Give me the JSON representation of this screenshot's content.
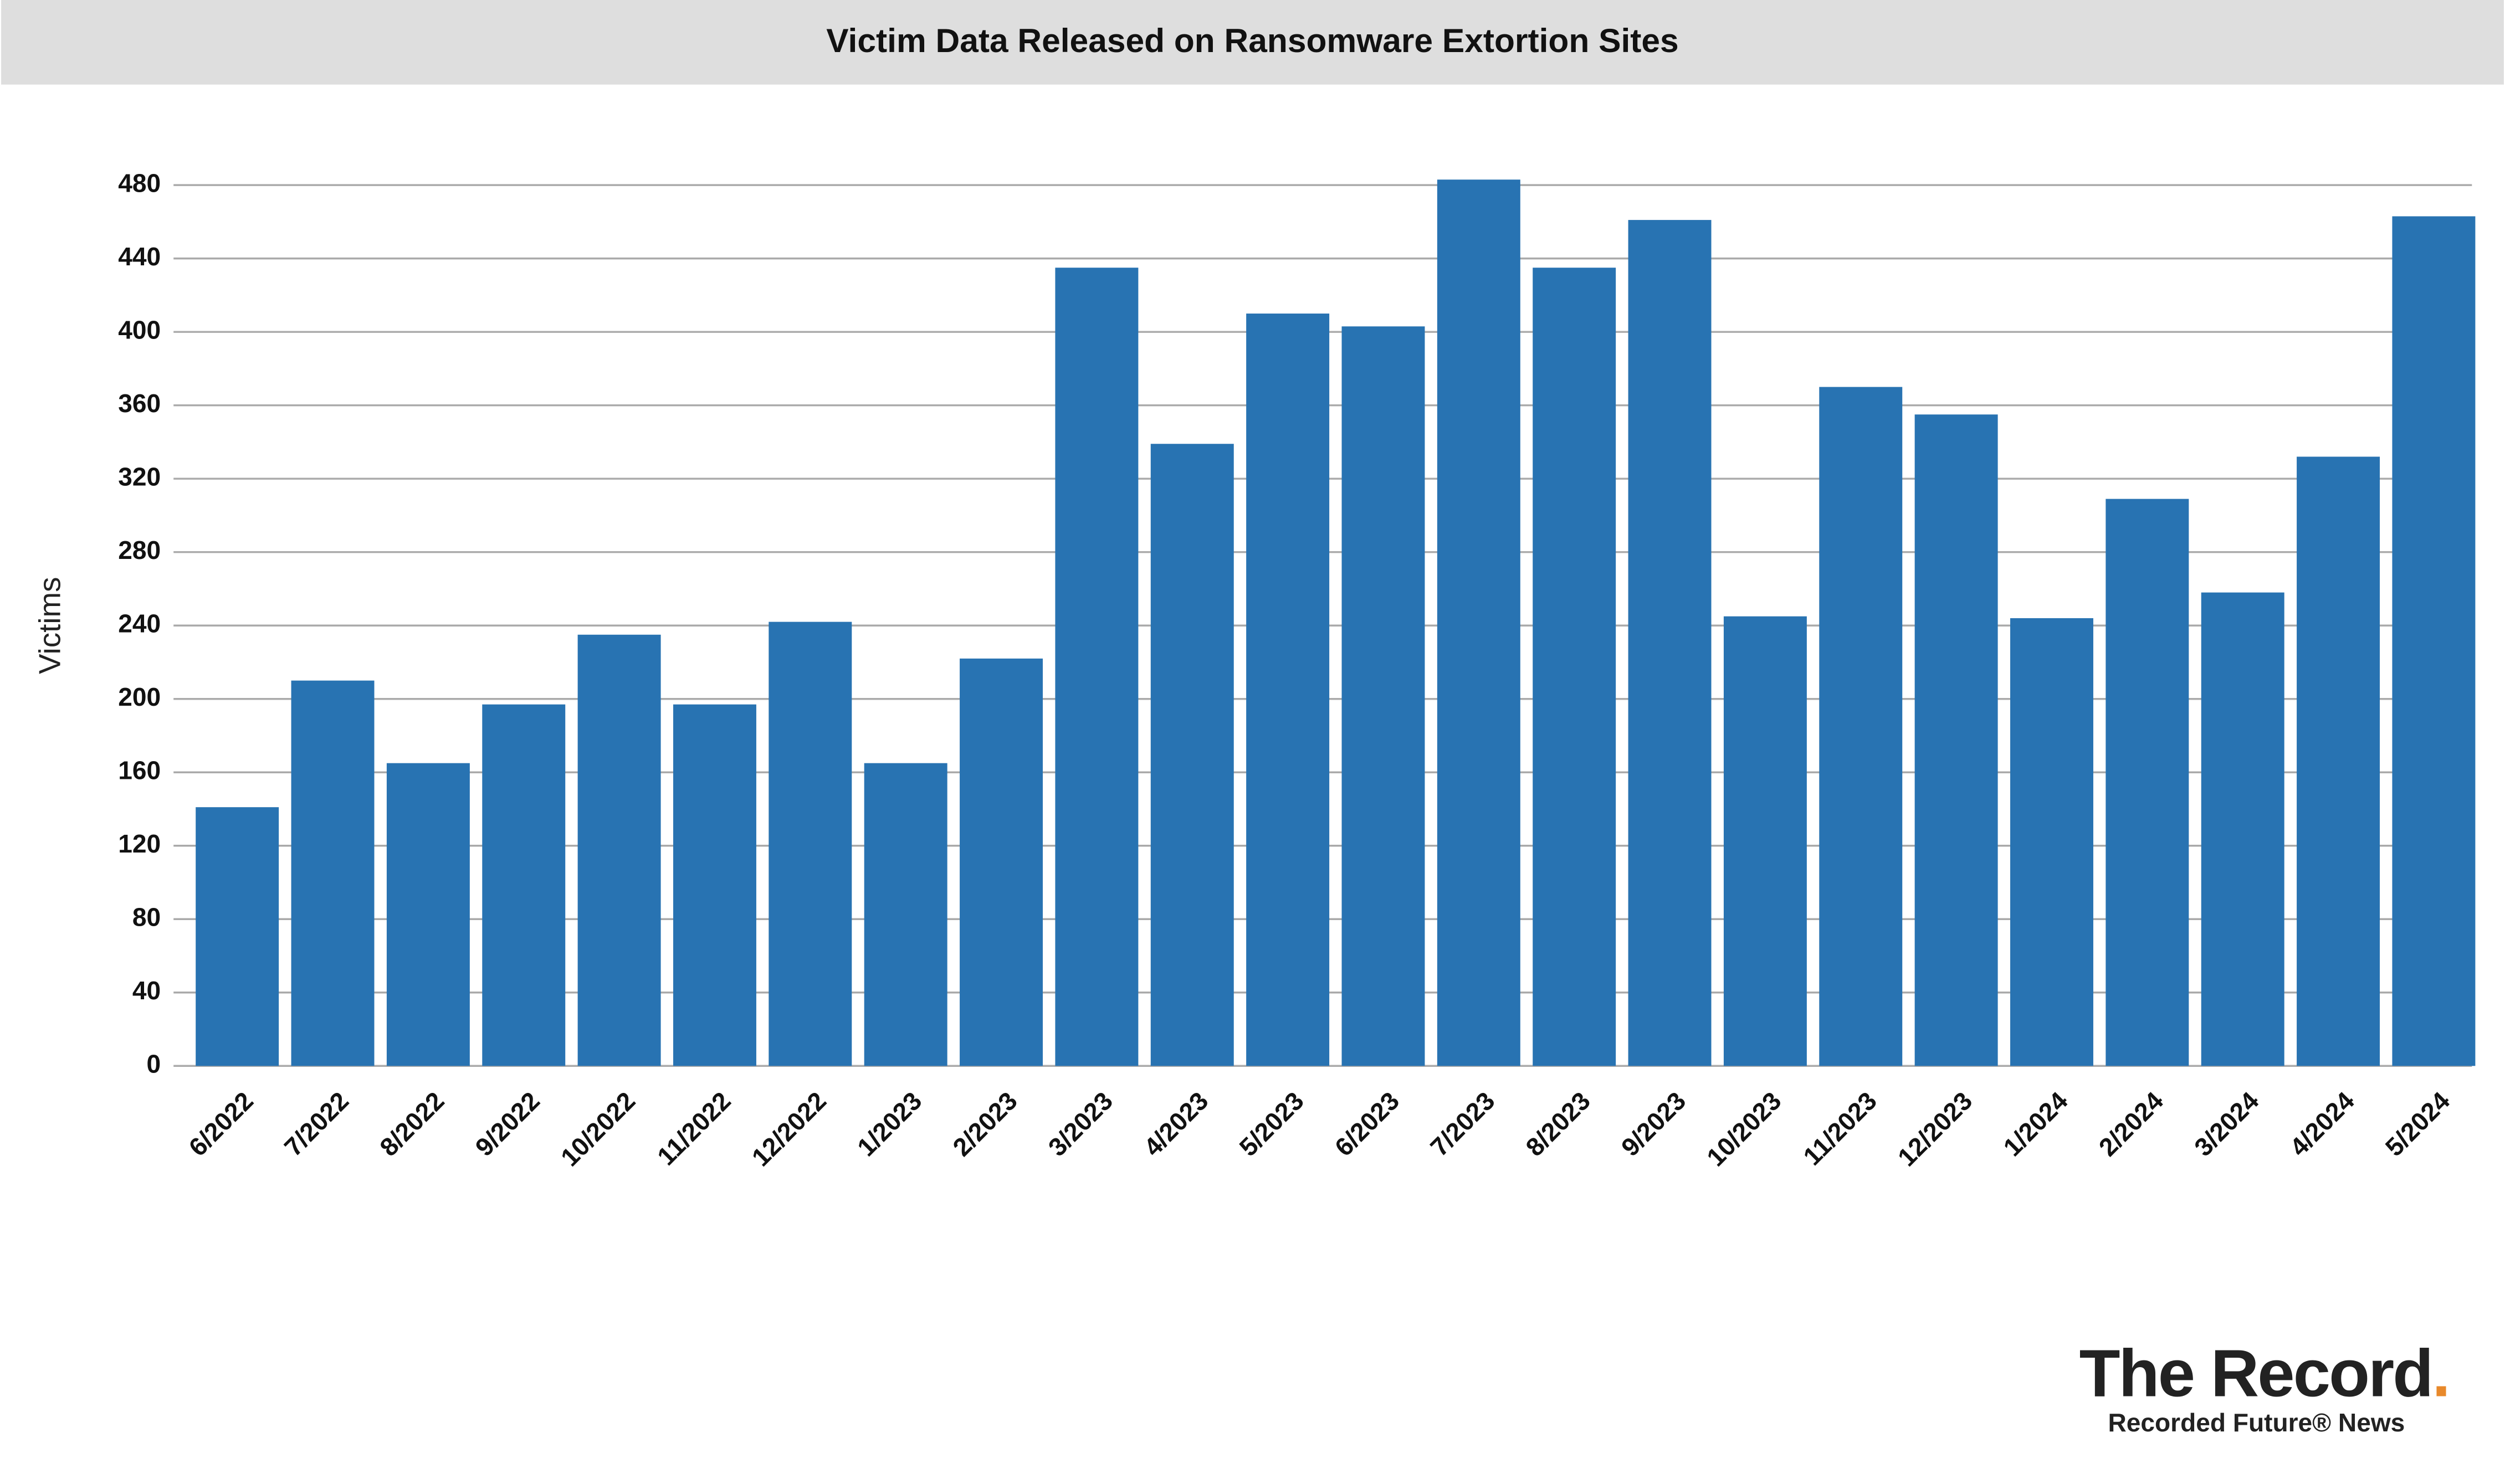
{
  "chart_data": {
    "type": "bar",
    "title": "Victim Data Released on Ransomware Extortion Sites",
    "y_label": "Victims",
    "categories": [
      "6/2022",
      "7/2022",
      "8/2022",
      "9/2022",
      "10/2022",
      "11/2022",
      "12/2022",
      "1/2023",
      "2/2023",
      "3/2023",
      "4/2023",
      "5/2023",
      "6/2023",
      "7/2023",
      "8/2023",
      "9/2023",
      "10/2023",
      "11/2023",
      "12/2023",
      "1/2024",
      "2/2024",
      "3/2024",
      "4/2024",
      "5/2024"
    ],
    "values": [
      141,
      210,
      165,
      197,
      235,
      197,
      242,
      165,
      222,
      435,
      339,
      410,
      403,
      483,
      435,
      461,
      245,
      370,
      355,
      244,
      309,
      258,
      332,
      463
    ],
    "color": "#2873b2",
    "ylim": [
      0,
      480
    ],
    "yticks": [
      0,
      40,
      80,
      120,
      160,
      200,
      240,
      280,
      320,
      360,
      400,
      440,
      480
    ],
    "grid": true
  },
  "branding": {
    "logo": "The Record",
    "logo_dot": ".",
    "tagline": "Recorded Future® News"
  }
}
